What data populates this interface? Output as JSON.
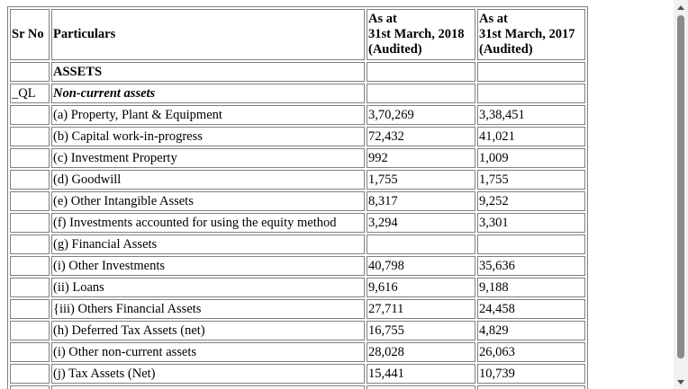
{
  "table": {
    "header": {
      "sr_no": "Sr No",
      "particulars": "Particulars",
      "col_2018": [
        "As at",
        "31st March, 2018",
        "(Audited)"
      ],
      "col_2017": [
        "As at",
        "31st March, 2017",
        "(Audited)"
      ]
    },
    "rows": [
      {
        "sr": "",
        "label": "ASSETS",
        "style": "bold",
        "v2018": "",
        "v2017": ""
      },
      {
        "sr": "_QL",
        "label": "Non-current assets",
        "style": "bold-italic",
        "v2018": "",
        "v2017": ""
      },
      {
        "sr": "",
        "label": "(a) Property, Plant & Equipment",
        "style": "normal",
        "v2018": "3,70,269",
        "v2017": "3,38,451"
      },
      {
        "sr": "",
        "label": "(b) Capital work-in-progress",
        "style": "normal",
        "v2018": "72,432",
        "v2017": "41,021"
      },
      {
        "sr": "",
        "label": "(c) Investment Property",
        "style": "normal",
        "v2018": "992",
        "v2017": "1,009"
      },
      {
        "sr": "",
        "label": "(d) Goodwill",
        "style": "normal",
        "v2018": "1,755",
        "v2017": "1,755"
      },
      {
        "sr": "",
        "label": "(e) Other Intangible Assets",
        "style": "normal",
        "v2018": "8,317",
        "v2017": "9,252"
      },
      {
        "sr": "",
        "label": "(f) Investments accounted for using the equity method",
        "style": "normal",
        "v2018": "3,294",
        "v2017": "3,301"
      },
      {
        "sr": "",
        "label": "(g) Financial Assets",
        "style": "normal",
        "v2018": "",
        "v2017": ""
      },
      {
        "sr": "",
        "label": "(i) Other Investments",
        "style": "normal",
        "v2018": "40,798",
        "v2017": "35,636"
      },
      {
        "sr": "",
        "label": "(ii) Loans",
        "style": "normal",
        "v2018": "9,616",
        "v2017": "9,188"
      },
      {
        "sr": "",
        "label": "{iii) Others Financial Assets",
        "style": "normal",
        "v2018": "27,711",
        "v2017": "24,458"
      },
      {
        "sr": "",
        "label": "(h) Deferred Tax Assets (net)",
        "style": "normal",
        "v2018": "16,755",
        "v2017": "4,829"
      },
      {
        "sr": "",
        "label": "(i) Other non-current assets",
        "style": "normal",
        "v2018": "28,028",
        "v2017": "26,063"
      },
      {
        "sr": "",
        "label": "(j) Tax Assets (Net)",
        "style": "normal",
        "v2018": "15,441",
        "v2017": "10,739"
      },
      {
        "sr": "",
        "label": "",
        "style": "normal",
        "v2018": "",
        "v2017": ""
      }
    ]
  },
  "scrollbar": {
    "up_icon": "triangle-up",
    "down_icon": "triangle-down"
  }
}
